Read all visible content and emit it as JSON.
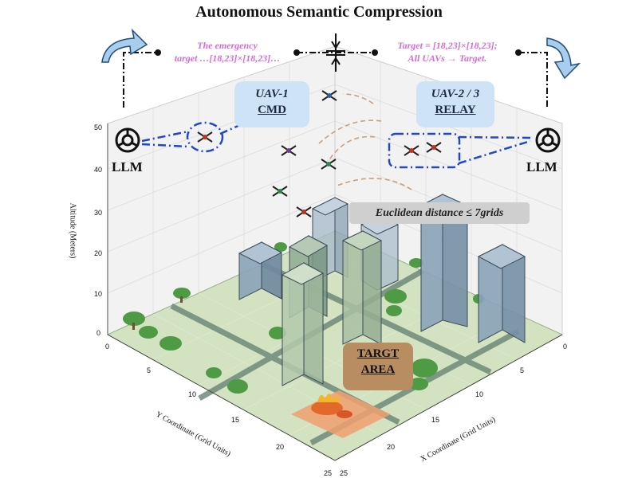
{
  "title": "Autonomous Semantic Compression",
  "messages": {
    "left_line1": "The emergency",
    "left_line2": "target …[18,23]×[18,23]…",
    "right_line1": "Target = [18,23]×[18,23];",
    "right_line2": "All UAVs → Target."
  },
  "callouts": {
    "uav1_line1": "UAV-1",
    "uav1_line2": "CMD",
    "uav23_line1": "UAV-2 / 3",
    "uav23_line2": "RELAY"
  },
  "llm_left": "LLM",
  "llm_right": "LLM",
  "distance_label": "Euclidean distance ≤ 7grids",
  "target_line1": "TARGT",
  "target_line2": "AREA",
  "axes": {
    "z_title": "Altitude (Meters)",
    "z_ticks": [
      "0",
      "10",
      "20",
      "30",
      "40",
      "50"
    ],
    "y_title": "Y Coordinate (Grid Units)",
    "y_ticks": [
      "0",
      "5",
      "10",
      "15",
      "20",
      "25"
    ],
    "x_title": "X Coordinate (Grid Units)",
    "x_ticks": [
      "0",
      "5",
      "10",
      "15",
      "20",
      "25"
    ]
  },
  "colors": {
    "callout_bg": "#cfe3f6",
    "message_text": "#d66bd3",
    "link_line": "#2147c9",
    "ground": "#d3e2c1",
    "road": "#6f8b7a",
    "target_box": "#b98d62",
    "building_blue": "#8aa3b8",
    "building_green": "#a9c0a3"
  },
  "icons": [
    "openai-logo-icon",
    "drone-icon",
    "rotate-arrow-icon",
    "compress-icon",
    "tree-icon",
    "fire-icon"
  ]
}
